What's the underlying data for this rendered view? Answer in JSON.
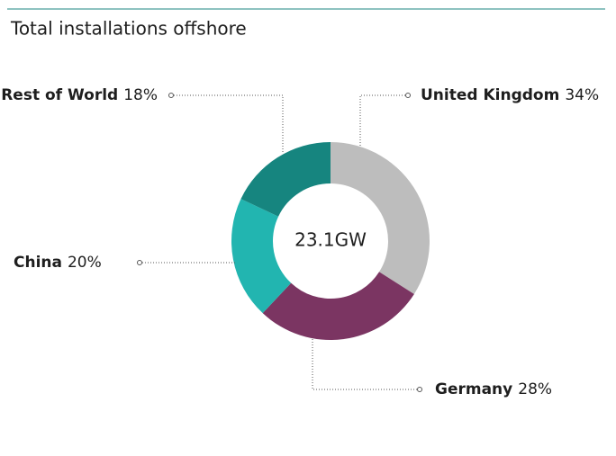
{
  "chart_data": {
    "type": "donut",
    "title": "Total installations offshore",
    "center_label": "23.1GW",
    "categories": [
      "United Kingdom",
      "Germany",
      "China",
      "Rest of World"
    ],
    "values": [
      34,
      28,
      20,
      18
    ],
    "value_labels": [
      "34%",
      "28%",
      "20%",
      "18%"
    ],
    "colors": [
      "#bdbdbd",
      "#7b3562",
      "#22b5b0",
      "#16857f"
    ]
  }
}
